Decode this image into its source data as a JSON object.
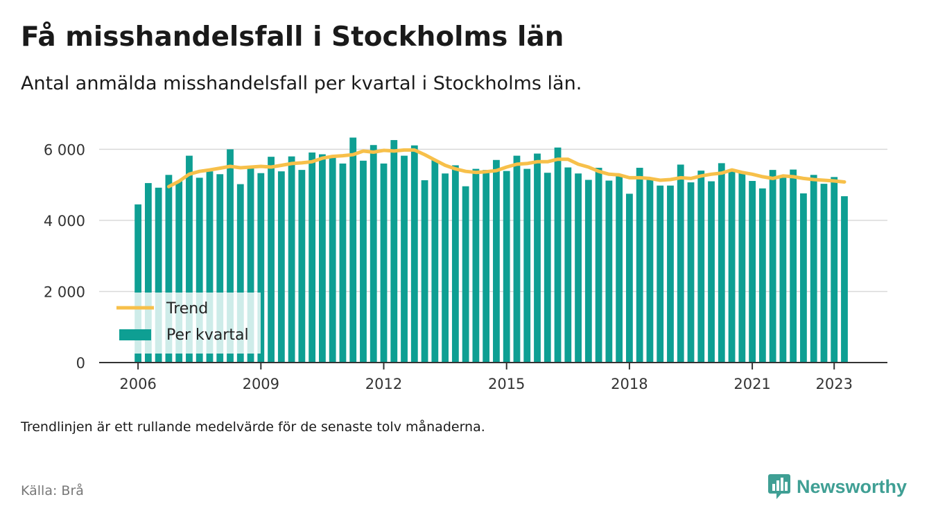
{
  "title": "Få misshandelsfall i Stockholms län",
  "subtitle": "Antal anmälda misshandelsfall per kvartal i Stockholms län.",
  "note": "Trendlinjen är ett rullande medelvärde för de senaste tolv månaderna.",
  "source": "Källa: Brå",
  "brand": {
    "name": "Newsworthy",
    "icon": "newsworthy-logo-icon"
  },
  "colors": {
    "bars": "#0e9f93",
    "trend": "#f7c04a",
    "grid": "#d9d9d9",
    "axis": "#333333"
  },
  "legend": {
    "trend_label": "Trend",
    "bars_label": "Per kvartal",
    "placement": "bottom-left"
  },
  "chart_data": {
    "type": "bar",
    "x_start": 2006,
    "x_step": 0.25,
    "xticks": [
      2006,
      2009,
      2012,
      2015,
      2018,
      2021,
      2023
    ],
    "xtick_labels": [
      "2006",
      "2009",
      "2012",
      "2015",
      "2018",
      "2021",
      "2023"
    ],
    "yticks": [
      0,
      2000,
      4000,
      6000
    ],
    "ytick_labels": [
      "0",
      "2 000",
      "4 000",
      "6 000"
    ],
    "ylim": [
      0,
      6300
    ],
    "xlim": [
      2005.05,
      2024.3
    ],
    "grid": true,
    "series": [
      {
        "name": "Per kvartal",
        "type": "bar",
        "values": [
          4450,
          5050,
          4920,
          5280,
          5100,
          5820,
          5200,
          5380,
          5300,
          6000,
          5020,
          5480,
          5330,
          5790,
          5380,
          5800,
          5420,
          5910,
          5860,
          5800,
          5600,
          6330,
          5680,
          6120,
          5600,
          6260,
          5820,
          6110,
          5130,
          5700,
          5320,
          5550,
          4960,
          5450,
          5420,
          5700,
          5390,
          5820,
          5450,
          5880,
          5340,
          6050,
          5490,
          5320,
          5140,
          5480,
          5120,
          5290,
          4750,
          5480,
          5180,
          4980,
          4980,
          5570,
          5070,
          5400,
          5100,
          5610,
          5380,
          5330,
          5110,
          4900,
          5420,
          5200,
          5430,
          4760,
          5280,
          5030,
          5220,
          4680
        ]
      },
      {
        "name": "Trend",
        "type": "line",
        "values": [
          null,
          null,
          null,
          4950,
          5100,
          5300,
          5380,
          5420,
          5470,
          5520,
          5480,
          5500,
          5520,
          5500,
          5550,
          5600,
          5620,
          5650,
          5750,
          5800,
          5820,
          5850,
          5950,
          5920,
          5970,
          5950,
          5980,
          5980,
          5850,
          5700,
          5550,
          5450,
          5380,
          5350,
          5370,
          5400,
          5500,
          5580,
          5600,
          5650,
          5650,
          5720,
          5720,
          5580,
          5500,
          5380,
          5300,
          5280,
          5200,
          5200,
          5180,
          5130,
          5150,
          5200,
          5180,
          5250,
          5300,
          5330,
          5420,
          5350,
          5300,
          5230,
          5180,
          5250,
          5230,
          5180,
          5150,
          5130,
          5110,
          5080
        ]
      }
    ]
  }
}
